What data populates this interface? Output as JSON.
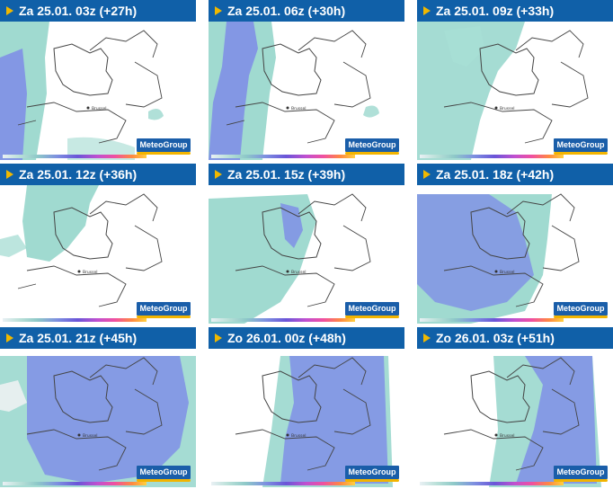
{
  "brand": "MeteoGroup",
  "city_label": "Brussel",
  "panels": [
    {
      "label": "Za 25.01. 03z (+27h)"
    },
    {
      "label": "Za 25.01. 06z (+30h)"
    },
    {
      "label": "Za 25.01. 09z (+33h)"
    },
    {
      "label": "Za 25.01. 12z (+36h)"
    },
    {
      "label": "Za 25.01. 15z (+39h)"
    },
    {
      "label": "Za 25.01. 18z (+42h)"
    },
    {
      "label": "Za 25.01. 21z (+45h)"
    },
    {
      "label": "Zo 26.01. 00z (+48h)"
    },
    {
      "label": "Zo 26.01. 03z (+51h)"
    }
  ],
  "colors": {
    "header": "#1060a8",
    "arrow": "#f0b800",
    "teal": "#8fd3c8",
    "blue": "#7f8fe6",
    "border": "#444444"
  }
}
